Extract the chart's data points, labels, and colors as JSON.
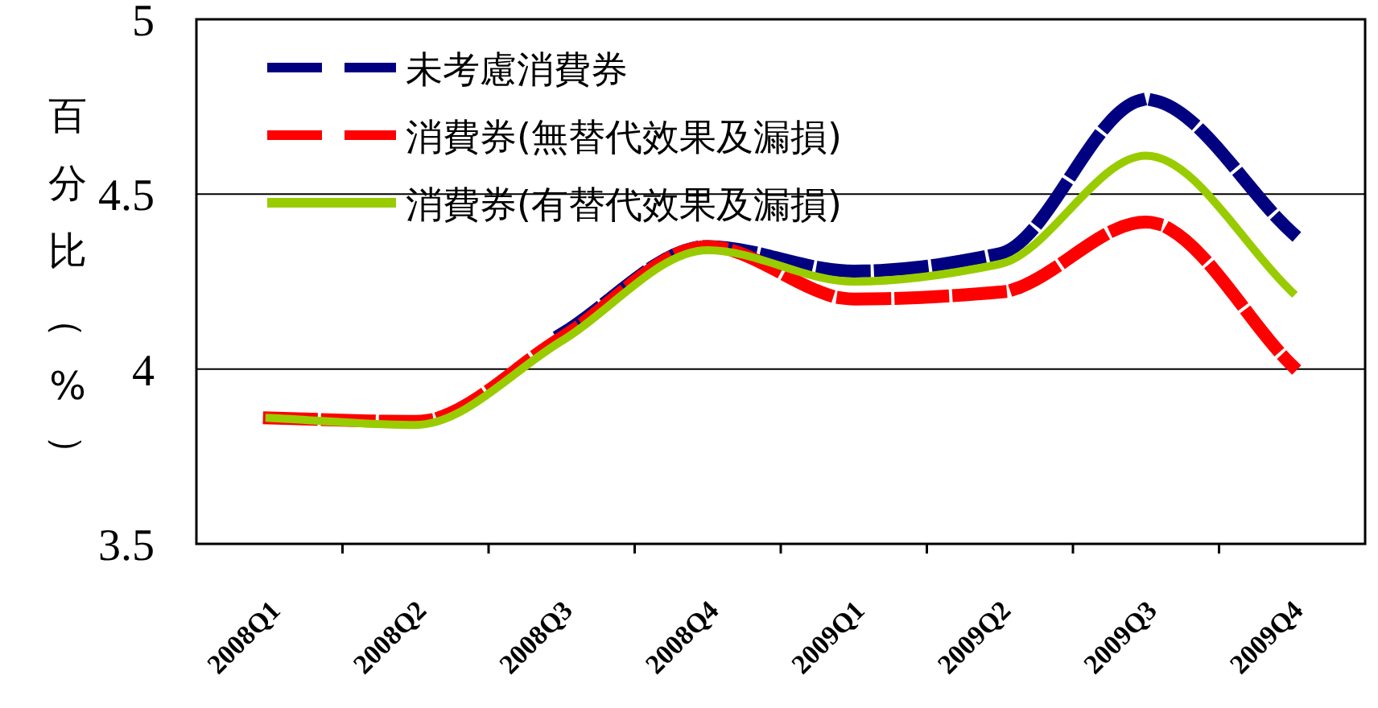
{
  "chart_data": {
    "type": "line",
    "ylabel": "百分比（%）",
    "categories": [
      "2008Q1",
      "2008Q2",
      "2008Q3",
      "2008Q4",
      "2009Q1",
      "2009Q2",
      "2009Q3",
      "2009Q4"
    ],
    "series": [
      {
        "name": "未考慮消費券",
        "color": "#000080",
        "line_style": "dashed",
        "values": [
          null,
          null,
          4.1,
          4.35,
          4.28,
          4.33,
          4.77,
          4.39
        ]
      },
      {
        "name": "消費券(無替代效果及漏損)",
        "color": "#ff0000",
        "line_style": "dashed",
        "values": [
          3.86,
          3.85,
          4.09,
          4.35,
          4.2,
          4.22,
          4.42,
          4.01
        ]
      },
      {
        "name": "消費券(有替代效果及漏損)",
        "color": "#99cc00",
        "line_style": "solid",
        "values": [
          3.86,
          3.84,
          4.08,
          4.34,
          4.25,
          4.3,
          4.61,
          4.22
        ]
      }
    ],
    "ylim": [
      3.5,
      5
    ],
    "yticks": [
      3.5,
      4,
      4.5,
      5
    ],
    "grid": "y",
    "legend": "top left",
    "marker": "none"
  }
}
